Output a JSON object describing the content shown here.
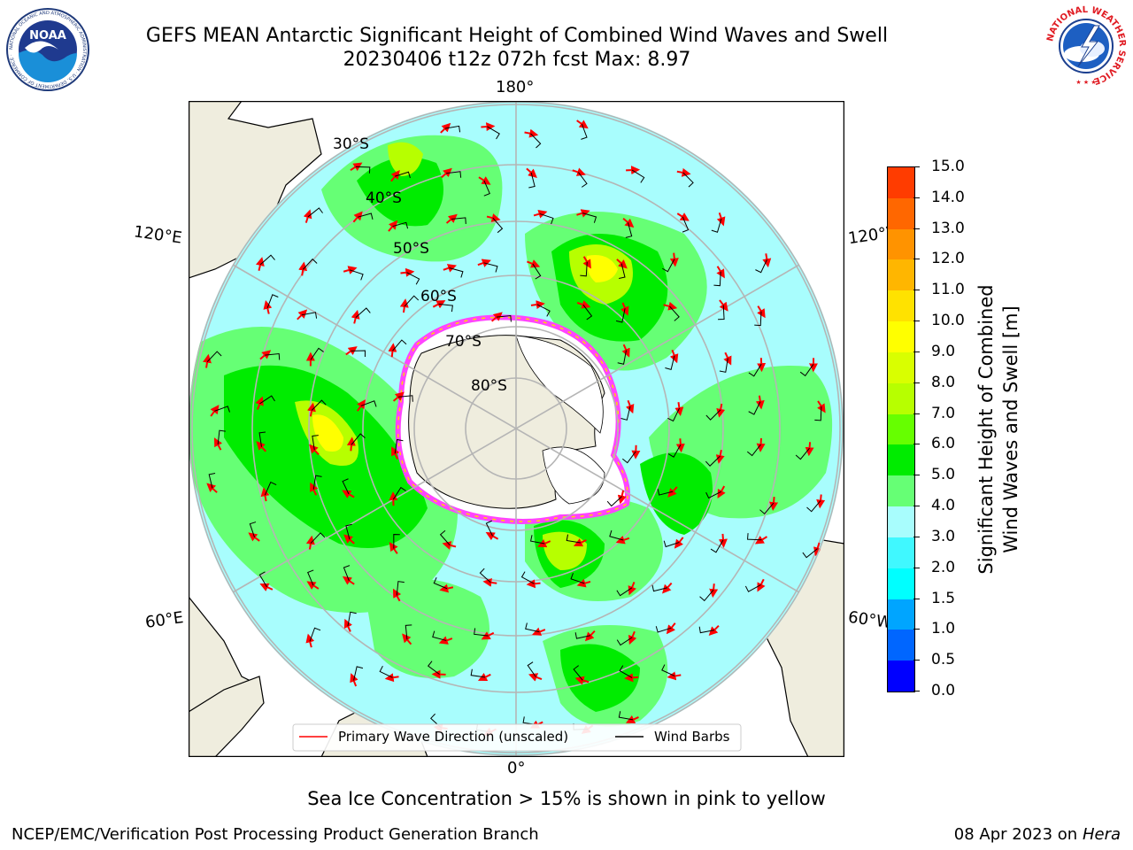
{
  "title": {
    "line1": "GEFS MEAN Antarctic Significant Height of Combined Wind Waves and Swell",
    "line2": "20230406 t12z 072h fcst   Max: 8.97"
  },
  "logos": {
    "left": {
      "text": "NOAA",
      "ring_text": "NATIONAL OCEANIC AND ATMOSPHERIC ADMINISTRATION · U.S. DEPARTMENT OF COMMERCE"
    },
    "right": {
      "ring_text": "NATIONAL WEATHER SERVICE"
    }
  },
  "map": {
    "projection": "south-polar-stereographic",
    "longitude_labels": {
      "top": "180°",
      "bottom": "0°",
      "upper_left": "120°E",
      "upper_right": "120°W",
      "lower_left": "60°E",
      "lower_right": "60°W"
    },
    "latitude_labels": [
      "30°S",
      "40°S",
      "50°S",
      "60°S",
      "70°S",
      "80°S"
    ],
    "legend": {
      "red_line": "Primary Wave Direction (unscaled)",
      "black_line": "Wind Barbs"
    },
    "colors": {
      "land": "#efedde",
      "ocean_low": "#a8fdfd",
      "ice_edge": "#ff44ff",
      "grid": "#b5b5b5"
    }
  },
  "colorbar": {
    "title_line1": "Significant Height of Combined",
    "title_line2": "Wind Waves and Swell [m]",
    "ticks": [
      "0.0",
      "0.5",
      "1.0",
      "1.5",
      "2.0",
      "3.0",
      "4.0",
      "5.0",
      "6.0",
      "7.0",
      "8.0",
      "9.0",
      "10.0",
      "11.0",
      "12.0",
      "13.0",
      "14.0",
      "15.0"
    ],
    "colors": [
      "#0000ff",
      "#0066ff",
      "#00a5ff",
      "#00ffff",
      "#40f8ff",
      "#a8fdfd",
      "#66ff75",
      "#00ec00",
      "#66ff00",
      "#b7ff00",
      "#d9ff00",
      "#ffff00",
      "#ffe200",
      "#ffb600",
      "#ff9300",
      "#ff6700",
      "#ff3c00",
      "#ff0000"
    ]
  },
  "footer": {
    "note": "Sea Ice Concentration > 15% is shown in pink to yellow",
    "credit": "NCEP/EMC/Verification Post Processing Product Generation Branch",
    "date": "08 Apr 2023 on ",
    "machine": "Hera"
  }
}
